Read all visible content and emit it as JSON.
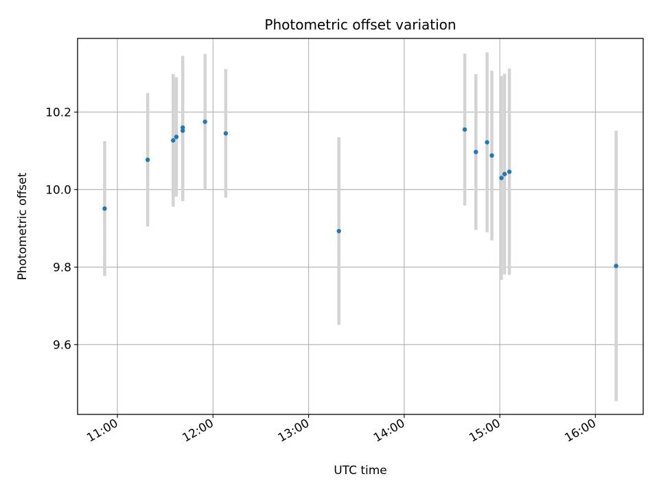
{
  "chart_data": {
    "type": "scatter",
    "title": "Photometric offset variation",
    "xlabel": "UTC time",
    "ylabel": "Photometric offset",
    "x_unit": "UTC hours",
    "xlim": [
      "10:35",
      "16:30"
    ],
    "ylim": [
      9.42,
      10.39
    ],
    "x_ticks": [
      "11:00",
      "12:00",
      "13:00",
      "14:00",
      "15:00",
      "16:00"
    ],
    "y_ticks": [
      "9.6",
      "9.8",
      "10.0",
      "10.2"
    ],
    "grid": true,
    "legend": "none",
    "colors": {
      "point": "#1f77b4",
      "errorbar": "#d3d3d3",
      "grid": "#b0b0b0"
    },
    "series": [
      {
        "points": [
          {
            "x": "10:52",
            "y": 9.951,
            "yerr": 0.174
          },
          {
            "x": "11:19",
            "y": 10.077,
            "yerr": 0.172
          },
          {
            "x": "11:35",
            "y": 10.127,
            "yerr": 0.171
          },
          {
            "x": "11:37",
            "y": 10.136,
            "yerr": 0.154
          },
          {
            "x": "11:41",
            "y": 10.152,
            "yerr": 0.182
          },
          {
            "x": "11:41",
            "y": 10.16,
            "yerr": 0.185
          },
          {
            "x": "11:55",
            "y": 10.175,
            "yerr": 0.175
          },
          {
            "x": "12:08",
            "y": 10.145,
            "yerr": 0.166
          },
          {
            "x": "13:19",
            "y": 9.893,
            "yerr": 0.242
          },
          {
            "x": "14:38",
            "y": 10.155,
            "yerr": 0.196
          },
          {
            "x": "14:45",
            "y": 10.097,
            "yerr": 0.201
          },
          {
            "x": "14:52",
            "y": 10.122,
            "yerr": 0.232
          },
          {
            "x": "14:55",
            "y": 10.088,
            "yerr": 0.219
          },
          {
            "x": "15:01",
            "y": 10.03,
            "yerr": 0.263
          },
          {
            "x": "15:03",
            "y": 10.04,
            "yerr": 0.259
          },
          {
            "x": "15:06",
            "y": 10.046,
            "yerr": 0.266
          },
          {
            "x": "16:13",
            "y": 9.803,
            "yerr": 0.349
          }
        ]
      }
    ]
  }
}
